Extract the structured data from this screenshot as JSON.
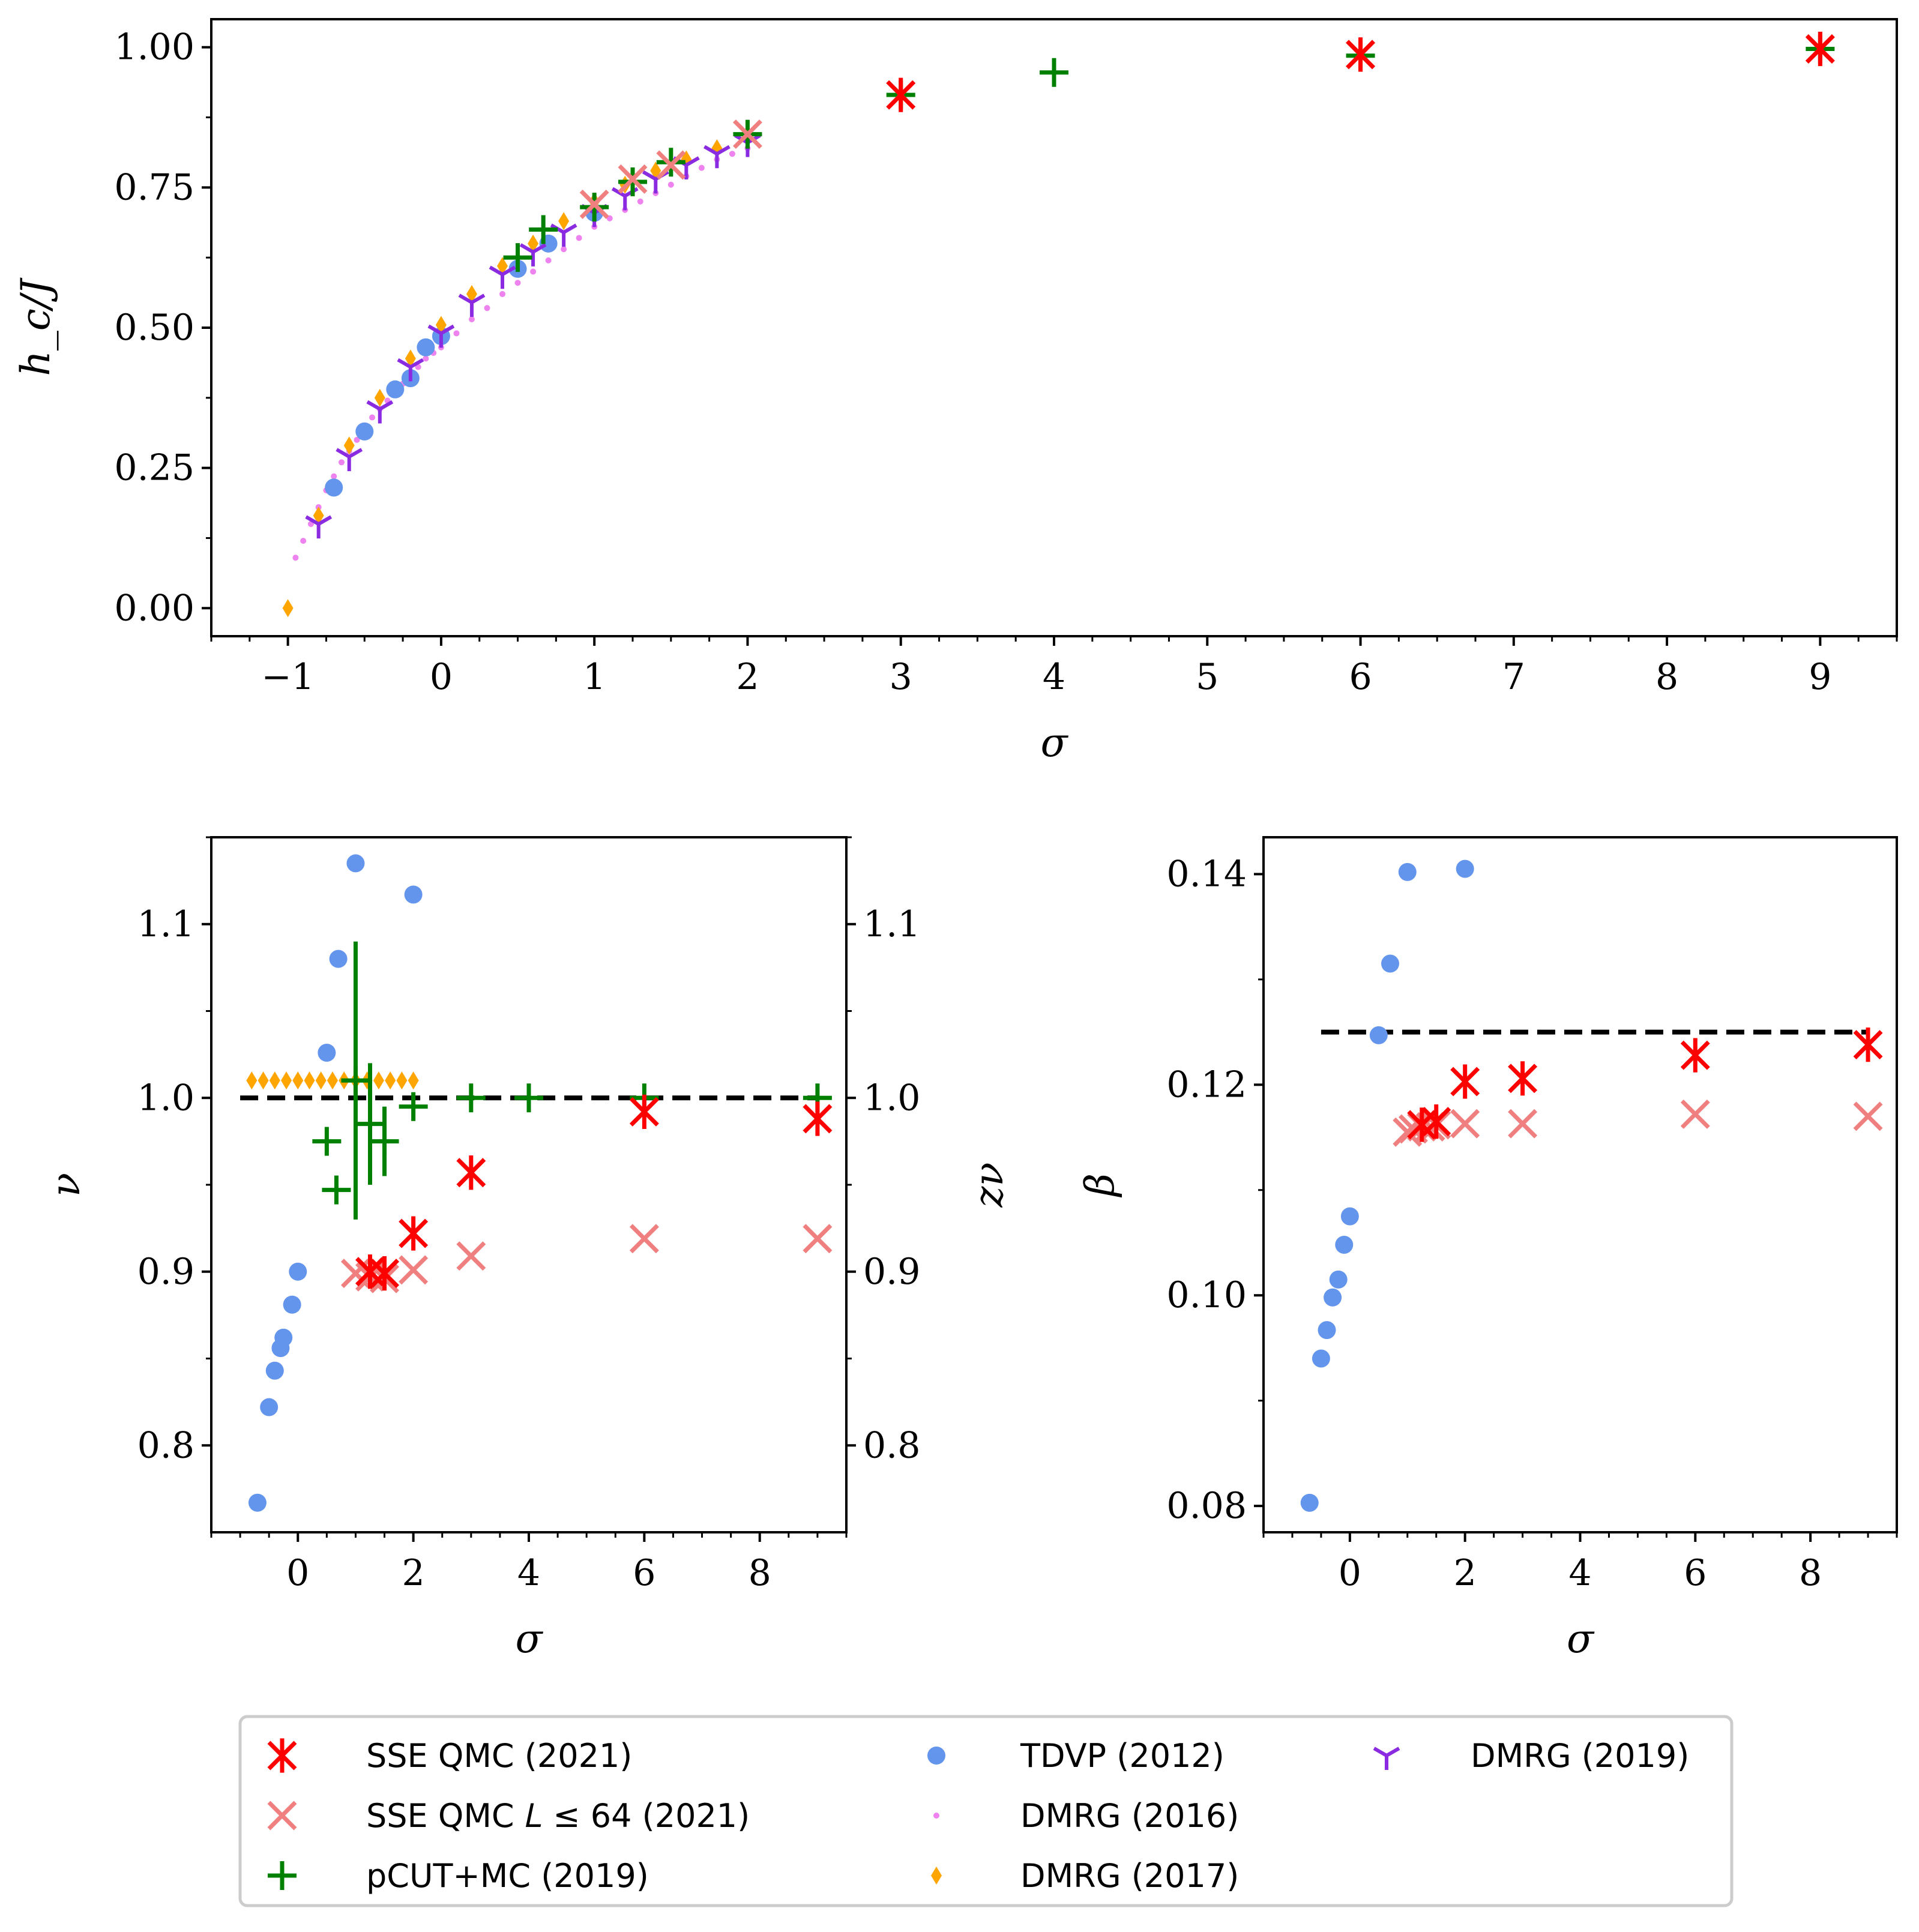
{
  "colors": {
    "sse": "#ff0000",
    "sse64": "#f08080",
    "pcut": "#008000",
    "tdvp": "#6495ed",
    "dmrg2016": "#ee82ee",
    "dmrg2017": "#ffa500",
    "dmrg2019": "#8a2be2",
    "reference_line": "#000000"
  },
  "chart_data": [
    {
      "id": "top",
      "type": "scatter",
      "xlabel": "σ",
      "ylabel": "h_c/J",
      "xlim": [
        -1.5,
        9.5
      ],
      "ylim": [
        -0.05,
        1.05
      ],
      "xticks": [
        -1,
        0,
        1,
        2,
        3,
        4,
        5,
        6,
        7,
        8,
        9
      ],
      "xtick_labels": [
        "−1",
        "0",
        "1",
        "2",
        "3",
        "4",
        "5",
        "6",
        "7",
        "8",
        "9"
      ],
      "yticks": [
        0,
        0.25,
        0.5,
        0.75,
        1.0
      ],
      "ytick_labels": [
        "0.00",
        "0.25",
        "0.50",
        "0.75",
        "1.00"
      ],
      "series": [
        {
          "name": "DMRG (2016)",
          "key": "dmrg2016",
          "marker": "point",
          "x": [
            -0.95,
            -0.9,
            -0.85,
            -0.8,
            -0.75,
            -0.7,
            -0.65,
            -0.6,
            -0.55,
            -0.5,
            -0.45,
            -0.4,
            -0.35,
            -0.3,
            -0.25,
            -0.2,
            -0.15,
            -0.1,
            -0.05,
            0,
            0.1,
            0.2,
            0.3,
            0.4,
            0.5,
            0.6,
            0.7,
            0.8,
            0.9,
            1.0,
            1.1,
            1.2,
            1.3,
            1.4,
            1.5,
            1.6,
            1.7,
            1.8,
            1.9,
            2.0
          ],
          "y": [
            0.09,
            0.12,
            0.15,
            0.18,
            0.21,
            0.235,
            0.26,
            0.28,
            0.3,
            0.32,
            0.34,
            0.355,
            0.37,
            0.385,
            0.4,
            0.415,
            0.43,
            0.445,
            0.455,
            0.465,
            0.49,
            0.515,
            0.535,
            0.56,
            0.58,
            0.6,
            0.62,
            0.64,
            0.66,
            0.68,
            0.695,
            0.71,
            0.725,
            0.74,
            0.755,
            0.77,
            0.785,
            0.8,
            0.81,
            0.82
          ]
        },
        {
          "name": "TDVP (2012)",
          "key": "tdvp",
          "marker": "circle",
          "x": [
            -0.7,
            -0.5,
            -0.3,
            -0.2,
            -0.1,
            0,
            0.5,
            0.7,
            1.0
          ],
          "y": [
            0.215,
            0.315,
            0.39,
            0.41,
            0.465,
            0.485,
            0.605,
            0.65,
            0.705
          ]
        },
        {
          "name": "DMRG (2017)",
          "key": "dmrg2017",
          "marker": "diamond",
          "x": [
            -1.0,
            -0.8,
            -0.6,
            -0.4,
            -0.2,
            0,
            0.2,
            0.4,
            0.6,
            0.8,
            1.0,
            1.2,
            1.4,
            1.6,
            1.8,
            2.0
          ],
          "y": [
            0.0,
            0.165,
            0.29,
            0.375,
            0.445,
            0.505,
            0.56,
            0.61,
            0.65,
            0.69,
            0.725,
            0.755,
            0.78,
            0.8,
            0.82,
            0.845
          ]
        },
        {
          "name": "DMRG (2019)",
          "key": "dmrg2019",
          "marker": "tri",
          "x": [
            -0.8,
            -0.6,
            -0.4,
            -0.2,
            0,
            0.2,
            0.4,
            0.6,
            0.8,
            1.0,
            1.2,
            1.4,
            1.6,
            1.8,
            2.0
          ],
          "y": [
            0.15,
            0.27,
            0.355,
            0.43,
            0.49,
            0.545,
            0.595,
            0.635,
            0.67,
            0.705,
            0.735,
            0.765,
            0.79,
            0.81,
            0.83
          ]
        },
        {
          "name": "pCUT+MC (2019)",
          "key": "pcut",
          "marker": "plus",
          "x": [
            0.5,
            0.667,
            1.0,
            1.25,
            1.5,
            2.0,
            3.0,
            4.0,
            6.0,
            9.0
          ],
          "y": [
            0.625,
            0.675,
            0.715,
            0.76,
            0.795,
            0.845,
            0.915,
            0.955,
            0.985,
            0.997
          ]
        },
        {
          "name": "SSE QMC L ≤ 64 (2021)",
          "key": "sse64",
          "marker": "x",
          "x": [
            1.0,
            1.25,
            1.5,
            2.0,
            3.0,
            6.0,
            9.0
          ],
          "y": [
            0.72,
            0.765,
            0.79,
            0.845,
            0.915,
            0.987,
            0.997
          ]
        },
        {
          "name": "SSE QMC (2021)",
          "key": "sse",
          "marker": "xplus",
          "x": [
            3.0,
            6.0,
            9.0
          ],
          "y": [
            0.915,
            0.987,
            0.997
          ]
        }
      ]
    },
    {
      "id": "nu",
      "type": "scatter",
      "xlabel": "σ",
      "ylabel": "ν",
      "ylabel_right": "zν",
      "xlim": [
        -1.5,
        9.5
      ],
      "ylim": [
        0.75,
        1.15
      ],
      "xticks": [
        0,
        2,
        4,
        6,
        8
      ],
      "xtick_labels": [
        "0",
        "2",
        "4",
        "6",
        "8"
      ],
      "yticks": [
        0.8,
        0.9,
        1.0,
        1.1
      ],
      "ytick_labels": [
        "0.8",
        "0.9",
        "1.0",
        "1.1"
      ],
      "reference_line": {
        "y": 1.0,
        "x_from": -1.0,
        "x_to": 9.0
      },
      "series": [
        {
          "name": "TDVP (2012)",
          "key": "tdvp",
          "marker": "circle",
          "x": [
            -0.7,
            -0.5,
            -0.4,
            -0.3,
            -0.25,
            -0.1,
            0,
            0.5,
            0.7,
            1.0,
            2.0
          ],
          "y": [
            0.767,
            0.822,
            0.843,
            0.856,
            0.862,
            0.881,
            0.9,
            1.026,
            1.08,
            1.135,
            1.117
          ]
        },
        {
          "name": "DMRG (2017)",
          "key": "dmrg2017",
          "marker": "diamond",
          "x": [
            -0.8,
            -0.6,
            -0.4,
            -0.2,
            0,
            0.2,
            0.4,
            0.6,
            0.8,
            1.0,
            1.2,
            1.4,
            1.6,
            1.8,
            2.0
          ],
          "y": [
            1.01,
            1.01,
            1.01,
            1.01,
            1.01,
            1.01,
            1.01,
            1.01,
            1.01,
            1.01,
            1.01,
            1.01,
            1.01,
            1.01,
            1.01
          ]
        },
        {
          "name": "pCUT+MC (2019)",
          "key": "pcut",
          "marker": "plus",
          "x": [
            0.5,
            0.667,
            1.0,
            1.25,
            1.5,
            2.0,
            3.0,
            4.0,
            6.0,
            9.0
          ],
          "y": [
            0.975,
            0.947,
            1.01,
            0.985,
            0.975,
            0.995,
            1.0,
            1.0,
            1.0,
            1.0
          ],
          "yerr": [
            0,
            0,
            0.08,
            0.035,
            0.02,
            0,
            0,
            0,
            0,
            0
          ]
        },
        {
          "name": "SSE QMC L ≤ 64 (2021)",
          "key": "sse64",
          "marker": "x",
          "x": [
            1.0,
            1.25,
            1.5,
            2.0,
            3.0,
            6.0,
            9.0
          ],
          "y": [
            0.899,
            0.897,
            0.896,
            0.901,
            0.909,
            0.919,
            0.919
          ]
        },
        {
          "name": "SSE QMC (2021)",
          "key": "sse",
          "marker": "xplus",
          "x": [
            1.25,
            1.5,
            2.0,
            3.0,
            6.0,
            9.0
          ],
          "y": [
            0.9,
            0.899,
            0.922,
            0.957,
            0.992,
            0.988
          ]
        }
      ]
    },
    {
      "id": "beta",
      "type": "scatter",
      "xlabel": "σ",
      "ylabel": "β",
      "xlim": [
        -1.5,
        9.5
      ],
      "ylim": [
        0.0775,
        0.1435
      ],
      "xticks": [
        0,
        2,
        4,
        6,
        8
      ],
      "xtick_labels": [
        "0",
        "2",
        "4",
        "6",
        "8"
      ],
      "yticks": [
        0.08,
        0.1,
        0.12,
        0.14
      ],
      "ytick_labels": [
        "0.08",
        "0.10",
        "0.12",
        "0.14"
      ],
      "reference_line": {
        "y": 0.125,
        "x_from": -0.5,
        "x_to": 9.0
      },
      "series": [
        {
          "name": "TDVP (2012)",
          "key": "tdvp",
          "marker": "circle",
          "x": [
            -0.7,
            -0.5,
            -0.4,
            -0.3,
            -0.2,
            -0.1,
            0,
            0.5,
            0.7,
            1.0,
            2.0
          ],
          "y": [
            0.0803,
            0.094,
            0.0967,
            0.0998,
            0.1015,
            0.1048,
            0.1075,
            0.1247,
            0.1315,
            0.1402,
            0.1405
          ]
        },
        {
          "name": "SSE QMC L ≤ 64 (2021)",
          "key": "sse64",
          "marker": "x",
          "x": [
            1.0,
            1.1,
            1.25,
            1.4,
            1.5,
            2.0,
            3.0,
            6.0,
            9.0
          ],
          "y": [
            0.1155,
            0.1158,
            0.116,
            0.116,
            0.1162,
            0.1163,
            0.1163,
            0.1172,
            0.117
          ]
        },
        {
          "name": "SSE QMC (2021)",
          "key": "sse",
          "marker": "xplus",
          "x": [
            1.25,
            1.5,
            2.0,
            3.0,
            6.0,
            9.0
          ],
          "y": [
            0.1162,
            0.1165,
            0.1203,
            0.1206,
            0.1228,
            0.1238
          ]
        }
      ]
    }
  ],
  "legend": [
    {
      "label": "SSE QMC (2021)",
      "key": "sse",
      "marker": "xplus"
    },
    {
      "label": "SSE QMC 𝐿 ≤ 64 (2021)",
      "key": "sse64",
      "marker": "x"
    },
    {
      "label": "pCUT+MC (2019)",
      "key": "pcut",
      "marker": "plus"
    },
    {
      "label": "TDVP (2012)",
      "key": "tdvp",
      "marker": "circle"
    },
    {
      "label": "DMRG (2016)",
      "key": "dmrg2016",
      "marker": "point"
    },
    {
      "label": "DMRG (2017)",
      "key": "dmrg2017",
      "marker": "diamond"
    },
    {
      "label": "DMRG (2019)",
      "key": "dmrg2019",
      "marker": "tri"
    }
  ]
}
